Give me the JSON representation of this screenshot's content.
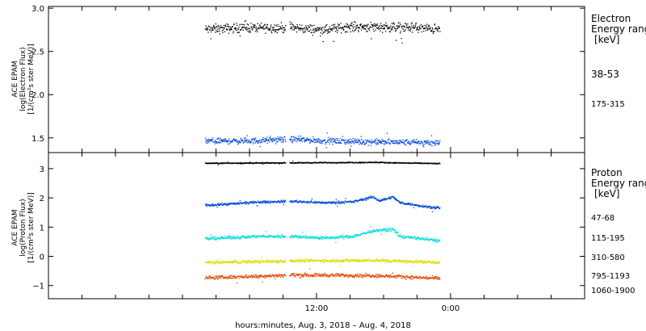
{
  "chart_data": [
    {
      "type": "scatter",
      "panel": "electron",
      "ylabel_lines": [
        "ACE EPAM",
        "log(Electron Flux)",
        "[1/(cm²s ster MeV)]"
      ],
      "ylim": [
        1.33,
        3.02
      ],
      "yticks": [
        1.5,
        2.0,
        2.5,
        3.0
      ],
      "ytick_labels": [
        "1.5",
        "2.0",
        "2.5",
        "3.0"
      ],
      "legend_title_lines": [
        "Electron",
        "Energy ranges",
        "[keV]"
      ],
      "series": [
        {
          "name": "38-53",
          "color": "#000000",
          "base": 2.76,
          "amp": 0.08,
          "profile": [
            [
              0,
              2.76
            ],
            [
              12,
              2.78
            ],
            [
              26,
              2.78
            ],
            [
              36,
              2.75
            ],
            [
              42,
              2.79
            ],
            [
              52,
              2.79
            ],
            [
              62,
              2.78
            ],
            [
              70,
              2.76
            ]
          ]
        },
        {
          "name": "175-315",
          "color": "#0046dc",
          "base": 1.46,
          "amp": 0.05,
          "profile": [
            [
              0,
              1.47
            ],
            [
              14,
              1.47
            ],
            [
              26,
              1.49
            ],
            [
              36,
              1.47
            ],
            [
              50,
              1.46
            ],
            [
              70,
              1.45
            ]
          ]
        }
      ]
    },
    {
      "type": "scatter",
      "panel": "proton",
      "ylabel_lines": [
        "ACE EPAM",
        "log(Proton Flux)",
        "[1/(cm²s ster MeV)]"
      ],
      "ylim": [
        -1.45,
        3.55
      ],
      "yticks": [
        -1,
        0,
        1,
        2,
        3
      ],
      "ytick_labels": [
        "−1",
        "0",
        "1",
        "2",
        "3"
      ],
      "legend_title_lines": [
        "Proton",
        "Energy ranges",
        "[keV]"
      ],
      "series": [
        {
          "name": "47-68",
          "color": "#000000",
          "base": 3.2,
          "amp": 0.025,
          "profile": [
            [
              0,
              3.2
            ],
            [
              50,
              3.23
            ],
            [
              70,
              3.19
            ]
          ]
        },
        {
          "name": "115-195",
          "color": "#0046dc",
          "base": 1.8,
          "amp": 0.06,
          "profile": [
            [
              0,
              1.76
            ],
            [
              16,
              1.87
            ],
            [
              26,
              1.9
            ],
            [
              36,
              1.85
            ],
            [
              44,
              1.88
            ],
            [
              50,
              2.05
            ],
            [
              52,
              1.92
            ],
            [
              56,
              2.05
            ],
            [
              58,
              1.86
            ],
            [
              64,
              1.75
            ],
            [
              70,
              1.66
            ]
          ]
        },
        {
          "name": "310-580",
          "color": "#00dcdc",
          "base": 0.62,
          "amp": 0.08,
          "profile": [
            [
              0,
              0.62
            ],
            [
              16,
              0.7
            ],
            [
              26,
              0.7
            ],
            [
              36,
              0.64
            ],
            [
              44,
              0.7
            ],
            [
              50,
              0.88
            ],
            [
              56,
              0.95
            ],
            [
              58,
              0.7
            ],
            [
              70,
              0.55
            ]
          ]
        },
        {
          "name": "795-1193",
          "color": "#dcdc00",
          "base": -0.18,
          "amp": 0.08,
          "profile": [
            [
              0,
              -0.2
            ],
            [
              26,
              -0.14
            ],
            [
              50,
              -0.12
            ],
            [
              70,
              -0.19
            ]
          ]
        },
        {
          "name": "1060-1900",
          "color": "#e64600",
          "base": -0.68,
          "amp": 0.09,
          "profile": [
            [
              0,
              -0.72
            ],
            [
              26,
              -0.62
            ],
            [
              50,
              -0.64
            ],
            [
              70,
              -0.74
            ]
          ]
        }
      ]
    }
  ],
  "x_axis": {
    "xlabel": "hours:minutes, Aug.  3, 2018 – Aug.  4, 2018",
    "xlim": [
      -12,
      36
    ],
    "labeled_ticks": [
      12,
      24
    ],
    "tick_labels": [
      "12:00",
      "0:00"
    ],
    "minor_ticks": [
      -9,
      -6,
      -3,
      0,
      3,
      6,
      9,
      12,
      15,
      18,
      21,
      24,
      27,
      30,
      33
    ],
    "data_start_hour": 2.0,
    "data_end_hour": 23.0,
    "gap_hours": [
      9.2,
      9.55
    ]
  }
}
